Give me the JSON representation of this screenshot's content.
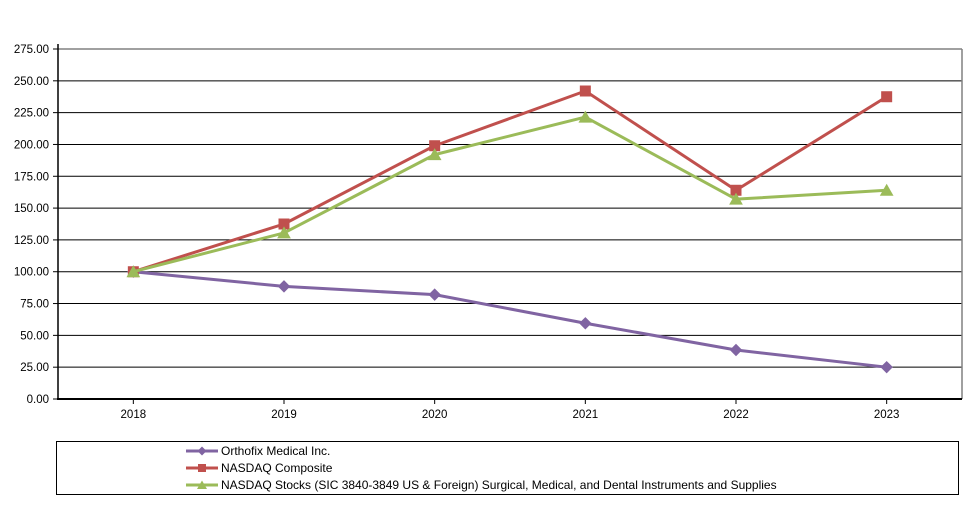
{
  "chart_data": {
    "type": "line",
    "title": "",
    "x_labels": [
      "2018",
      "2019",
      "2020",
      "2021",
      "2022",
      "2023"
    ],
    "y_ticks": [
      "0.00",
      "25.00",
      "50.00",
      "75.00",
      "100.00",
      "125.00",
      "150.00",
      "175.00",
      "200.00",
      "225.00",
      "250.00",
      "275.00"
    ],
    "ylim": [
      0,
      275
    ],
    "y_tick_step": 25,
    "grid": "horizontal",
    "legend_position": "bottom",
    "series": [
      {
        "name": "Orthofix Medical Inc.",
        "marker": "diamond",
        "color": "#8064A2",
        "values": [
          100,
          88.5,
          82,
          59.5,
          38.5,
          25
        ]
      },
      {
        "name": "NASDAQ Composite",
        "marker": "square",
        "color": "#C0504D",
        "values": [
          100,
          137.5,
          199,
          242,
          164,
          237.5
        ]
      },
      {
        "name": "NASDAQ Stocks (SIC 3840-3849 US & Foreign) Surgical, Medical, and Dental Instruments and Supplies",
        "marker": "triangle",
        "color": "#9BBB59",
        "values": [
          100,
          130.5,
          192,
          221.5,
          157,
          164
        ]
      }
    ]
  },
  "colors": {
    "background": "#FFFFFF",
    "gridline": "#000000",
    "axis": "#000000",
    "plot_border": "#808080",
    "legend_border": "#000000",
    "text": "#000000"
  }
}
